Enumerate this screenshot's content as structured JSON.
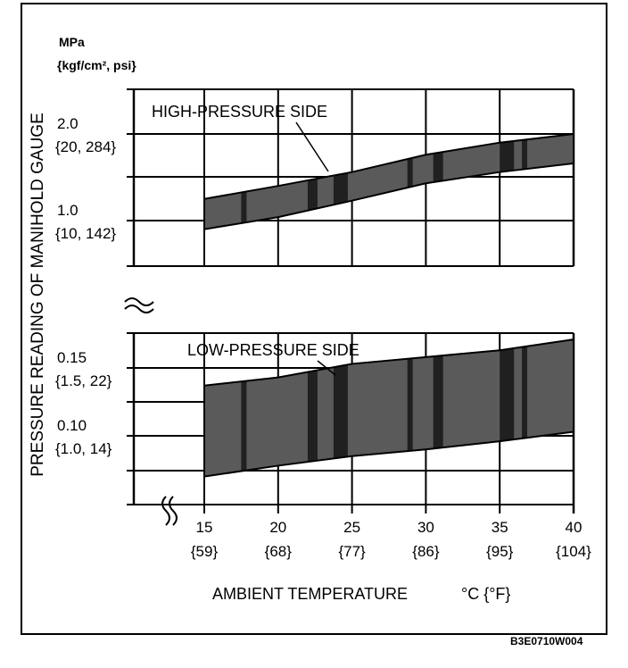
{
  "chart_data": {
    "type": "area",
    "y_unit_line1": "MPa",
    "y_unit_line2": "{kgf/cm², psi}",
    "ylabel": "PRESSURE READING OF MANIHOLD GAUGE",
    "xlabel": "AMBIENT TEMPERATURE",
    "xunit": "°C {°F}",
    "x": [
      15,
      20,
      25,
      30,
      35,
      40
    ],
    "x_tick_labels": [
      "15",
      "20",
      "25",
      "30",
      "35",
      "40"
    ],
    "x_tick_labels_f": [
      "{59}",
      "{68}",
      "{77}",
      "{86}",
      "{95}",
      "{104}"
    ],
    "xlim": [
      15,
      40
    ],
    "panels": [
      {
        "name": "HIGH-PRESSURE SIDE",
        "ylim": [
          0.5,
          2.5
        ],
        "y_ticks": [
          {
            "value": 2.0,
            "label": "2.0",
            "sub": "{20, 284}"
          },
          {
            "value": 1.0,
            "label": "1.0",
            "sub": "{10, 142}"
          }
        ],
        "upper": [
          1.25,
          1.4,
          1.56,
          1.76,
          1.9,
          2.0
        ],
        "lower": [
          0.9,
          1.04,
          1.23,
          1.43,
          1.56,
          1.66
        ]
      },
      {
        "name": "LOW-PRESSURE SIDE",
        "ylim": [
          0.0475,
          0.1725
        ],
        "y_ticks": [
          {
            "value": 0.15,
            "label": "0.15",
            "sub": "{1.5, 22}"
          },
          {
            "value": 0.1,
            "label": "0.10",
            "sub": "{1.0, 14}"
          }
        ],
        "upper": [
          0.137,
          0.143,
          0.153,
          0.158,
          0.163,
          0.171
        ],
        "lower": [
          0.07,
          0.078,
          0.085,
          0.09,
          0.096,
          0.103
        ]
      }
    ],
    "grid": true
  },
  "figure_code": "B3E0710W004",
  "colors": {
    "band": "#5a5a5a",
    "stripe": "#111111",
    "line": "#000000"
  }
}
